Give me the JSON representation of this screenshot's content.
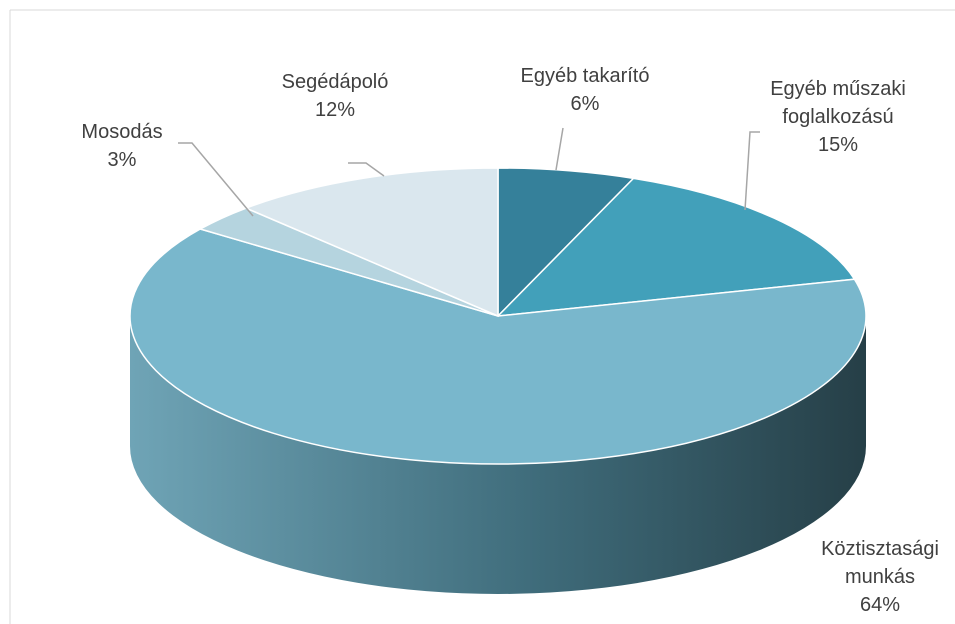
{
  "chart_data": {
    "type": "pie3d",
    "categories": [
      "Egyéb takarító",
      "Egyéb műszaki foglalkozású",
      "Köztisztasági munkás",
      "Mosodás",
      "Segédápoló"
    ],
    "values": [
      6,
      15,
      64,
      3,
      12
    ],
    "value_labels": [
      "6%",
      "15%",
      "64%",
      "3%",
      "12%"
    ],
    "colors": [
      "#35809a",
      "#42a0ba",
      "#79b7cc",
      "#b5d4df",
      "#dae7ee"
    ]
  }
}
